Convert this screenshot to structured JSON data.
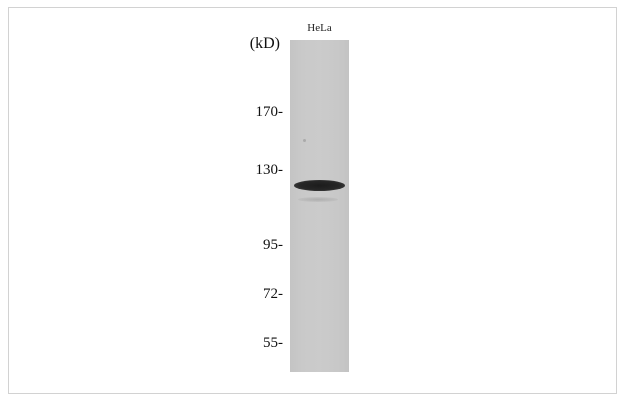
{
  "blot": {
    "lane_label": "HeLa",
    "unit_label": "(kD)",
    "markers": [
      "170-",
      "130-",
      "95-",
      "72-",
      "55-"
    ]
  }
}
